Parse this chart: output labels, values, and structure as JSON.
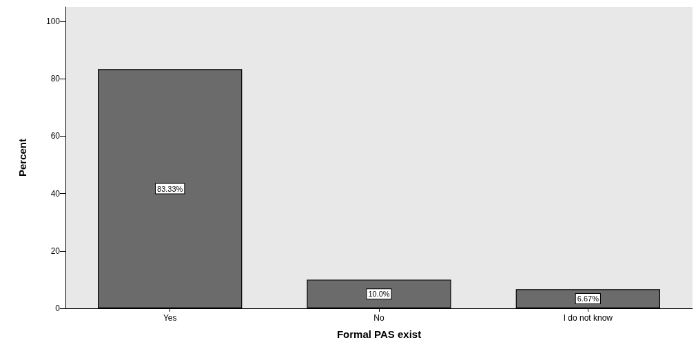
{
  "chart_data": {
    "type": "bar",
    "xlabel": "Formal PAS exist",
    "ylabel": "Percent",
    "categories": [
      "Yes",
      "No",
      "I do not know"
    ],
    "values": [
      83.33,
      10.0,
      6.67
    ],
    "value_labels": [
      "83.33%",
      "10.0%",
      "6.67%"
    ],
    "color": "#6b6b6b",
    "ylim": [
      0,
      105
    ],
    "yticks": [
      0,
      20,
      40,
      60,
      80,
      100
    ],
    "grid": false
  }
}
